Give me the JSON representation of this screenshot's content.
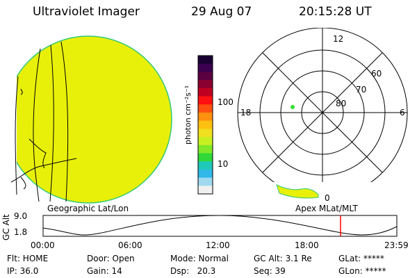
{
  "header": {
    "title": "Ultraviolet Imager",
    "date": "29 Aug 07",
    "time": "20:15:28 UT"
  },
  "colorbar": {
    "unit_label": "photon cm⁻²s⁻¹",
    "ticks": [
      "100",
      "10"
    ],
    "colors": [
      "#1a0033",
      "#3b0050",
      "#5a0040",
      "#8a0030",
      "#c00020",
      "#ff1010",
      "#ff5010",
      "#ff9010",
      "#ffc010",
      "#f0e020",
      "#c8f020",
      "#80e828",
      "#30d838",
      "#20c8b8",
      "#30b8e8",
      "#a0d8f0",
      "#f0f0f0"
    ]
  },
  "images": {
    "disk_color": "#e8f00a",
    "disk_edge_color": "#30c878",
    "frame_label": "Geographic Lat/Lon"
  },
  "polar": {
    "frame_label": "Apex MLat/MLT",
    "mlt_labels": {
      "top": "12",
      "left": "18",
      "right": "6",
      "bottom": "0"
    },
    "lat_labels": [
      "60",
      "70",
      "80"
    ],
    "point_color": "#30e030"
  },
  "timeline": {
    "axis_label": "GC Alt",
    "alt_max": "9.0",
    "alt_min": "1.8",
    "ticks": [
      "00:00",
      "06:00",
      "12:00",
      "18:00",
      "23:59"
    ],
    "marker_color": "#ff0000"
  },
  "info": {
    "flt": "Flt: HOME",
    "ip": "IP: 36.0",
    "door": "Door: Open",
    "gain": "Gain: 14",
    "mode": "Mode: Normal",
    "dsp": "Dsp:   20.3",
    "gc_alt": "GC Alt: 3.1 Re",
    "seq": "Seq: 39",
    "glat": "GLat: *****",
    "glon": "GLon: *****"
  }
}
